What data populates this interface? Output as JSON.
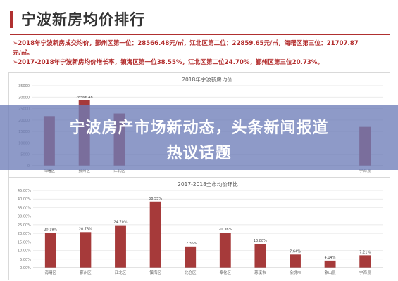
{
  "header": {
    "title": "宁波新房均价排行"
  },
  "notes": [
    "➢2018年宁波新房成交均价，鄞州区第一位：28566.48元/㎡，江北区第二位：22859.65元/㎡，海曙区第三位：21707.87",
    "元/㎡。",
    "➢2017-2018年宁波新房均价增长率，镇海区第一位38.55%，江北区第二位24.70%，鄞州区第三位20.73%。"
  ],
  "banner": {
    "line1": "宁波房产市场新动态，头条新闻报道",
    "line2": "热议话题"
  },
  "colors": {
    "bar": "#a63a3a",
    "accent": "#b03030",
    "banner": "#6e7db9"
  },
  "chart_data": [
    {
      "type": "bar",
      "title": "2018年宁波新房均价",
      "categories": [
        "海曙区",
        "鄞州区",
        "江北区",
        "",
        "",
        "",
        "",
        "",
        "",
        "宁海县"
      ],
      "values": [
        21707.87,
        28566.48,
        22859.65,
        null,
        null,
        null,
        null,
        null,
        null,
        17000
      ],
      "value_labels": [
        "",
        "28566.48",
        "",
        "",
        "",
        "",
        "",
        "",
        "",
        ""
      ],
      "ylim": [
        0,
        35000
      ],
      "yticks": [
        "0",
        "5000",
        "10000",
        "15000",
        "20000",
        "25000",
        "30000",
        "35000"
      ],
      "grid": true
    },
    {
      "type": "bar",
      "title": "2017-2018全市均价环比",
      "categories": [
        "海曙区",
        "鄞州区",
        "江北区",
        "镇海区",
        "北仑区",
        "奉化区",
        "慈溪市",
        "余姚市",
        "象山县",
        "宁海县"
      ],
      "values": [
        20.18,
        20.73,
        24.7,
        38.55,
        12.35,
        20.36,
        13.88,
        7.64,
        4.14,
        7.21
      ],
      "value_labels": [
        "20.18%",
        "20.73%",
        "24.70%",
        "38.55%",
        "12.35%",
        "20.36%",
        "13.88%",
        "7.64%",
        "4.14%",
        "7.21%"
      ],
      "ylim": [
        0,
        45
      ],
      "yticks": [
        "0.00%",
        "5.00%",
        "10.00%",
        "15.00%",
        "20.00%",
        "25.00%",
        "30.00%",
        "35.00%",
        "40.00%",
        "45.00%"
      ],
      "grid": true
    }
  ]
}
